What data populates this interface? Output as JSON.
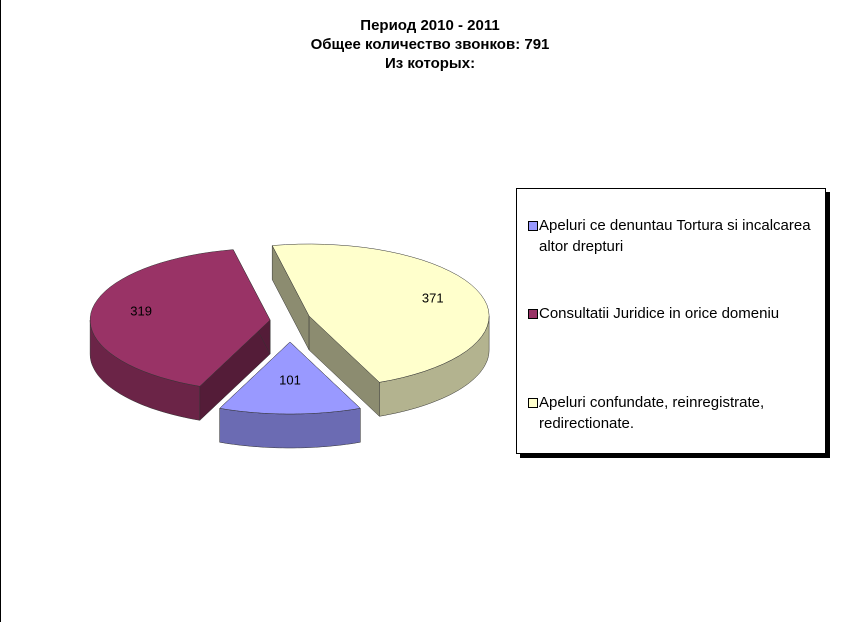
{
  "chart_data": {
    "type": "pie3d",
    "title_lines": [
      "Период 2010 - 2011",
      "Общее количество звонков: 791",
      "Из которых:"
    ],
    "categories": [
      "Apeluri ce denuntau  Tortura si incalcarea altor drepturi",
      "Consultatii Juridice in orice domeniu",
      "Apeluri confundate, reinregistrate, redirectionate."
    ],
    "values": [
      101,
      319,
      371
    ],
    "colors": [
      "#9999ff",
      "#993366",
      "#ffffcc"
    ],
    "legend": "right"
  }
}
